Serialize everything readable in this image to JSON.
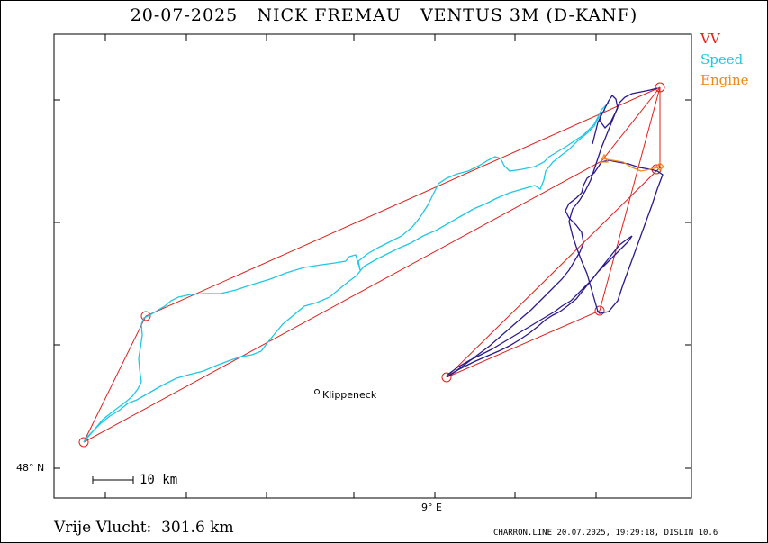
{
  "header": {
    "date": "20-07-2025",
    "pilot": "NICK FREMAU",
    "glider": "VENTUS 3M (D-KANF)"
  },
  "legend": [
    {
      "label": "VV",
      "color": "#e0201a"
    },
    {
      "label": "Speed",
      "color": "#1ec8e6"
    },
    {
      "label": "Engine",
      "color": "#f08a1c"
    }
  ],
  "axes": {
    "lat_label": "48° N",
    "lon_label": "9° E"
  },
  "scale_bar": {
    "label": "10 km"
  },
  "places": [
    {
      "name": "Klippeneck"
    }
  ],
  "footer": {
    "distance_label": "Vrije Vlucht:",
    "distance_value": "301.6 km",
    "info": "CHARRON.LINE 20.07.2025, 19:29:18, DISLIN 10.6"
  },
  "colors": {
    "task_line": "#e0201a",
    "speed_track": "#1ec8e6",
    "climb_track": "#2a1a8c",
    "engine_track": "#f08a1c"
  }
}
